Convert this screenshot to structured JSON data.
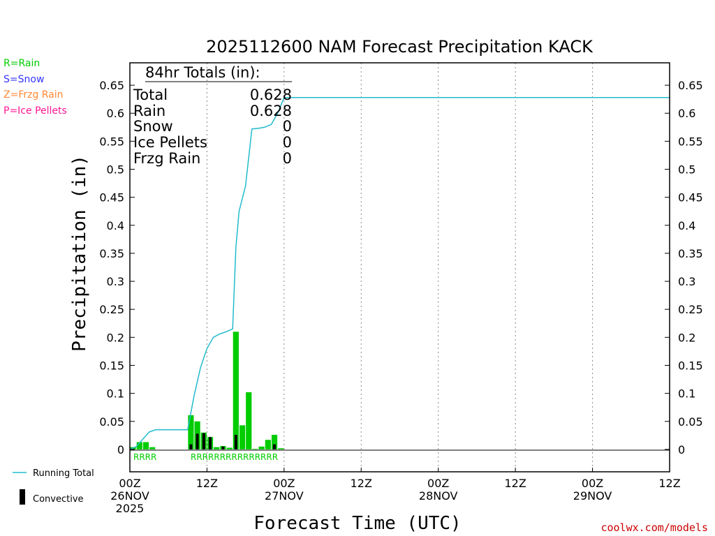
{
  "colors": {
    "rain": "#00cc00",
    "snow": "#3333ff",
    "frzg_rain": "#ff8833",
    "ice_pellets": "#ff1493",
    "running_total": "#22bbcc",
    "convective": "#000000",
    "credit": "#cc0000"
  },
  "legend_top": [
    "R=Rain",
    "S=Snow",
    "Z=Frzg Rain",
    "P=Ice Pellets"
  ],
  "legend_bottom": {
    "running_total": "Running Total",
    "convective": "Convective"
  },
  "totals_box": {
    "header": "84hr Totals (in):",
    "rows": [
      {
        "label": "Total",
        "value": "0.628"
      },
      {
        "label": "Rain",
        "value": "0.628"
      },
      {
        "label": "Snow",
        "value": "0"
      },
      {
        "label": "Ice Pellets",
        "value": "0"
      },
      {
        "label": "Frzg Rain",
        "value": "0"
      }
    ]
  },
  "credit": "coolwx.com/models",
  "chart_data": {
    "type": "bar",
    "title": "2025112600 NAM Forecast Precipitation KACK",
    "xlabel": "Forecast Time (UTC)",
    "ylabel": "Precipitation (in)",
    "xlim": [
      0,
      84
    ],
    "ylim": [
      -0.04,
      0.69
    ],
    "y_ticks": [
      "0.65",
      "0.6",
      "0.55",
      "0.5",
      "0.45",
      "0.4",
      "0.35",
      "0.3",
      "0.25",
      "0.2",
      "0.15",
      "0.1",
      "0.05",
      "0"
    ],
    "x_ticks": [
      {
        "hour": 0,
        "lines": [
          "00Z",
          "26NOV",
          "2025"
        ]
      },
      {
        "hour": 12,
        "lines": [
          "12Z"
        ]
      },
      {
        "hour": 24,
        "lines": [
          "00Z",
          "27NOV"
        ]
      },
      {
        "hour": 36,
        "lines": [
          "12Z"
        ]
      },
      {
        "hour": 48,
        "lines": [
          "00Z",
          "28NOV"
        ]
      },
      {
        "hour": 60,
        "lines": [
          "12Z"
        ]
      },
      {
        "hour": 72,
        "lines": [
          "00Z",
          "29NOV"
        ]
      },
      {
        "hour": 84,
        "lines": [
          "12Z"
        ]
      }
    ],
    "grid": "vertical dotted",
    "series": [
      {
        "name": "Precipitation",
        "hours": [
          1,
          2,
          3,
          4,
          10,
          11,
          12,
          13,
          14,
          15,
          16,
          17,
          18,
          19,
          20,
          21,
          22,
          23,
          24
        ],
        "values": [
          0.004,
          0.013,
          0.013,
          0.004,
          0.061,
          0.05,
          0.03,
          0.022,
          0.004,
          0.006,
          0.003,
          0.21,
          0.043,
          0.102,
          0.001,
          0.005,
          0.017,
          0.026,
          0.002
        ]
      },
      {
        "name": "Convective",
        "hours": [
          10,
          11,
          12,
          13,
          15,
          17,
          23
        ],
        "values": [
          0.009,
          0.028,
          0.029,
          0.022,
          0.005,
          0.026,
          0.009
        ]
      },
      {
        "name": "Running Total",
        "x": [
          0,
          1,
          2,
          3,
          4,
          9,
          10,
          11,
          12,
          13,
          14,
          15,
          16,
          16.5,
          17,
          18,
          19,
          20,
          21,
          22,
          23,
          24,
          84
        ],
        "y": [
          0,
          0.005,
          0.018,
          0.031,
          0.035,
          0.035,
          0.096,
          0.146,
          0.18,
          0.2,
          0.206,
          0.21,
          0.215,
          0.36,
          0.425,
          0.47,
          0.572,
          0.573,
          0.575,
          0.58,
          0.6,
          0.628,
          0.628
        ]
      }
    ],
    "precip_type_labels": [
      "RRRR",
      "RRRRRRRRRRRRRRR"
    ]
  }
}
